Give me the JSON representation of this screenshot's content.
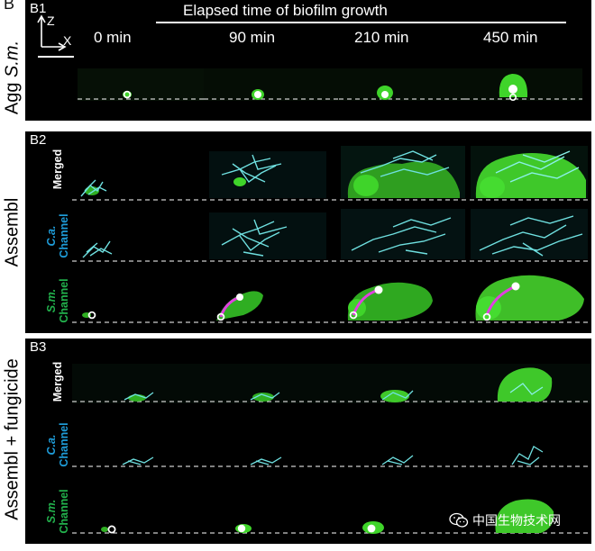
{
  "corner_letter": "B",
  "panels": {
    "b1": {
      "label": "B1"
    },
    "b2": {
      "label": "B2"
    },
    "b3": {
      "label": "B3"
    }
  },
  "header": {
    "title": "Elapsed time of biofilm growth",
    "times": [
      "0 min",
      "90 min",
      "210 min",
      "450 min"
    ],
    "axis_z": "Z",
    "axis_x": "X"
  },
  "side_titles": {
    "agg_prefix": "Agg ",
    "agg_species": "S.m.",
    "assembl": "Assembl",
    "assembl_fungicide": "Assembl + fungicide"
  },
  "row_labels": {
    "merged": "Merged",
    "ca_line1": "C.a.",
    "ca_line2": "Channel",
    "sm_line1": "S.m.",
    "sm_line2": "Channel"
  },
  "colors": {
    "panel_bg": "#000000",
    "s_mutans_green": "#3fd42a",
    "c_albicans_cyan": "#6fe0e0",
    "trajectory_magenta": "#e040e0",
    "label_blue": "#1e9bd7",
    "label_green": "#22b14c",
    "marker_white": "#ffffff"
  },
  "watermark": {
    "text": "中国生物技术网",
    "icon": "wechat-icon"
  }
}
